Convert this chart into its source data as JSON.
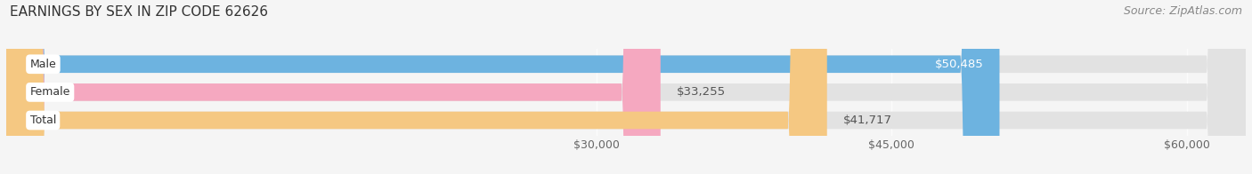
{
  "title": "EARNINGS BY SEX IN ZIP CODE 62626",
  "source": "Source: ZipAtlas.com",
  "categories": [
    "Male",
    "Female",
    "Total"
  ],
  "values": [
    50485,
    33255,
    41717
  ],
  "bar_colors": [
    "#6db3e0",
    "#f5a8c0",
    "#f5c882"
  ],
  "label_colors": [
    "white",
    "#555555",
    "#555555"
  ],
  "x_min": 0,
  "x_max": 63000,
  "x_ticks": [
    30000,
    45000,
    60000
  ],
  "x_tick_labels": [
    "$30,000",
    "$45,000",
    "$60,000"
  ],
  "bar_height": 0.62,
  "background_color": "#f5f5f5",
  "bar_background_color": "#e2e2e2",
  "title_fontsize": 11,
  "source_fontsize": 9,
  "label_fontsize": 9.5,
  "category_fontsize": 9
}
